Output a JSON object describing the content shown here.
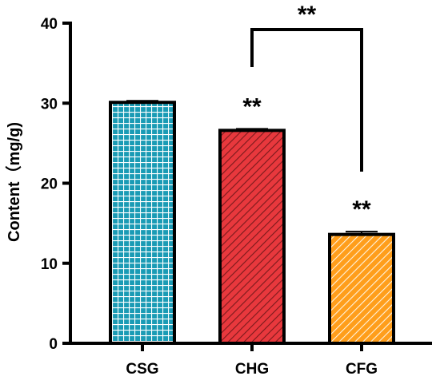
{
  "chart_data": {
    "type": "bar",
    "categories": [
      "CSG",
      "CHG",
      "CFG"
    ],
    "values": [
      30.1,
      26.6,
      13.6
    ],
    "errors": [
      0.2,
      0.2,
      0.35
    ],
    "ylabel": "Content（mg/g)",
    "ylim": [
      0,
      40
    ],
    "yticks": [
      0,
      10,
      20,
      30,
      40
    ],
    "grid": false,
    "bar_colors": [
      "#1a9bb5",
      "#e8383d",
      "#ff9e1b"
    ],
    "bar_patterns": [
      "grid",
      "diagonal",
      "diagonal"
    ],
    "significance": [
      {
        "category": "CHG",
        "label": "**"
      },
      {
        "category": "CFG",
        "label": "**"
      }
    ],
    "comparison": {
      "from": "CHG",
      "to": "CFG",
      "label": "**"
    }
  }
}
